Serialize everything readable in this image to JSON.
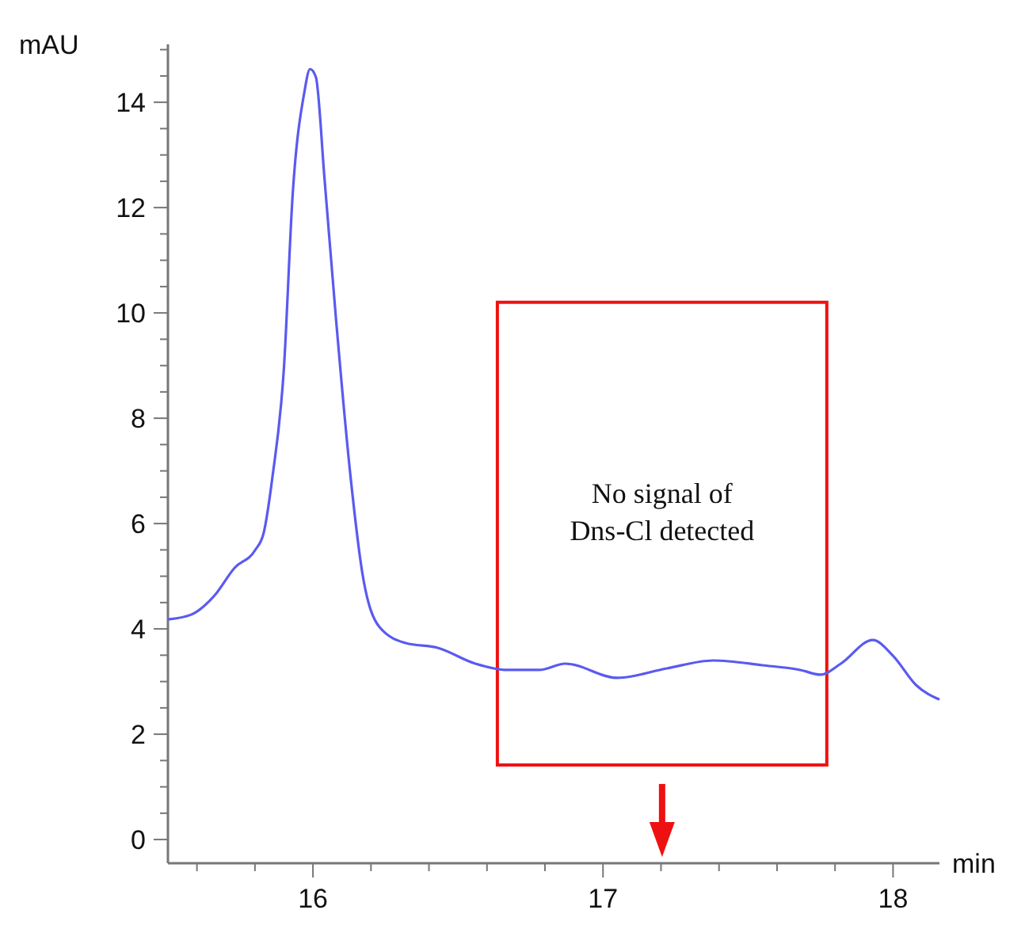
{
  "chart_data": {
    "type": "line",
    "xlabel": "min",
    "ylabel": "mAU",
    "x": [
      15.5,
      15.58,
      15.66,
      15.73,
      15.8,
      15.83,
      15.86,
      15.9,
      15.93,
      15.97,
      15.99,
      16.01,
      16.04,
      16.08,
      16.13,
      16.17,
      16.23,
      16.32,
      16.43,
      16.56,
      16.67,
      16.78,
      16.87,
      17.05,
      17.22,
      17.38,
      17.55,
      17.68,
      17.75,
      17.82,
      17.93,
      18.0,
      18.08,
      18.16
    ],
    "series": [
      {
        "color": "#5a5af0",
        "values": [
          4.18,
          4.27,
          4.63,
          5.16,
          5.49,
          5.82,
          6.87,
          8.96,
          12.24,
          14.18,
          14.63,
          14.48,
          12.54,
          9.85,
          6.87,
          5.07,
          4.03,
          3.73,
          3.64,
          3.34,
          3.22,
          3.22,
          3.34,
          3.07,
          3.25,
          3.4,
          3.31,
          3.22,
          3.13,
          3.34,
          3.79,
          3.49,
          2.93,
          2.66
        ]
      }
    ],
    "xlim": [
      15.5,
      18.16
    ],
    "xticks": [
      {
        "value": 15.6,
        "label": null
      },
      {
        "value": 15.8,
        "label": null
      },
      16,
      {
        "value": 16.2,
        "label": null
      },
      {
        "value": 16.4,
        "label": null
      },
      {
        "value": 16.6,
        "label": null
      },
      {
        "value": 16.8,
        "label": null
      },
      17,
      {
        "value": 17.2,
        "label": null
      },
      {
        "value": 17.4,
        "label": null
      },
      {
        "value": 17.6,
        "label": null
      },
      {
        "value": 17.8,
        "label": null
      },
      18
    ],
    "ylim": [
      -0.45,
      15.1
    ],
    "yticks": [
      0,
      {
        "value": 0.5,
        "label": null
      },
      {
        "value": 1,
        "label": null
      },
      {
        "value": 1.5,
        "label": null
      },
      2,
      {
        "value": 2.5,
        "label": null
      },
      {
        "value": 3,
        "label": null
      },
      {
        "value": 3.5,
        "label": null
      },
      4,
      {
        "value": 4.5,
        "label": null
      },
      {
        "value": 5,
        "label": null
      },
      {
        "value": 5.5,
        "label": null
      },
      6,
      {
        "value": 6.5,
        "label": null
      },
      {
        "value": 7,
        "label": null
      },
      {
        "value": 7.5,
        "label": null
      },
      8,
      {
        "value": 8.5,
        "label": null
      },
      {
        "value": 9,
        "label": null
      },
      {
        "value": 9.5,
        "label": null
      },
      10,
      {
        "value": 10.5,
        "label": null
      },
      {
        "value": 11,
        "label": null
      },
      {
        "value": 11.5,
        "label": null
      },
      12,
      {
        "value": 12.5,
        "label": null
      },
      {
        "value": 13,
        "label": null
      },
      {
        "value": 13.5,
        "label": null
      },
      14,
      {
        "value": 14.5,
        "label": null
      },
      {
        "value": 15,
        "label": null
      }
    ],
    "annotations": [
      "No signal of Dns-Cl detected"
    ],
    "grid": false,
    "marker": "none",
    "line_style": "solid"
  }
}
